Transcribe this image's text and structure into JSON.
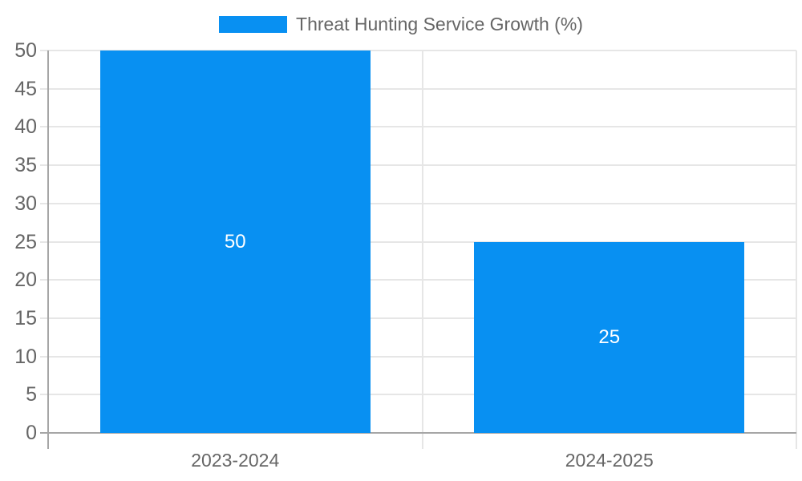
{
  "chart_data": {
    "type": "bar",
    "title": "Threat Hunting Service Growth (%)",
    "categories": [
      "2023-2024",
      "2024-2025"
    ],
    "values": [
      50,
      25
    ],
    "xlabel": "",
    "ylabel": "",
    "ylim": [
      0,
      50
    ],
    "ytick_step": 5,
    "yticks": [
      0,
      5,
      10,
      15,
      20,
      25,
      30,
      35,
      40,
      45,
      50
    ],
    "grid": true,
    "legend_position": "top-center",
    "legend_entries": [
      "Threat Hunting Service Growth (%)"
    ],
    "colors": {
      "bar": "#0890F2",
      "axis_text": "#666666",
      "grid_line": "#e6e6e6",
      "axis_line": "#a6a6a6",
      "bar_label_text": "#ffffff",
      "background": "#ffffff"
    }
  }
}
